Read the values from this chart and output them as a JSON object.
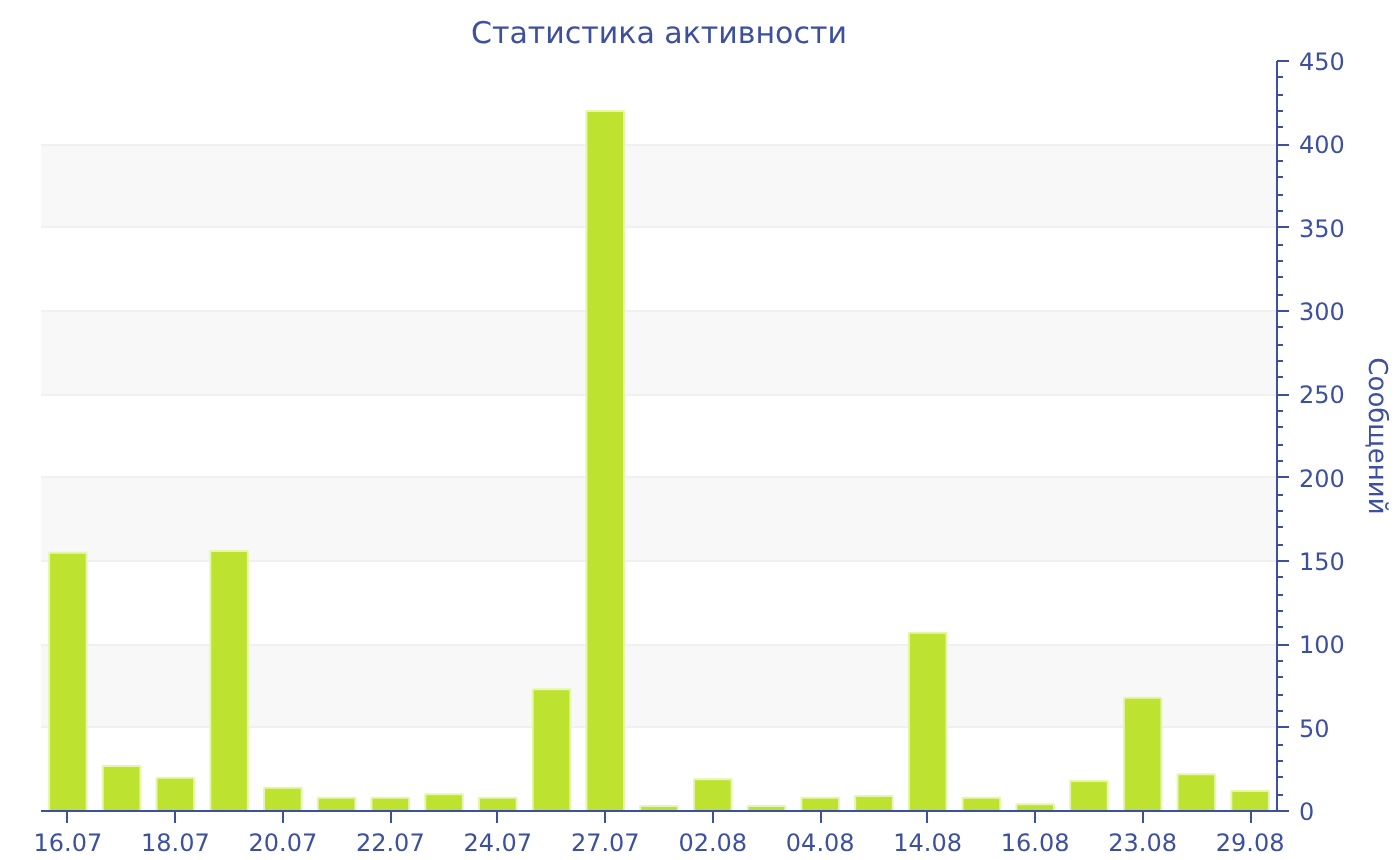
{
  "chart_data": {
    "type": "bar",
    "title": "Статистика активности",
    "y2label": "Сообщений",
    "categories": [
      "16.07",
      null,
      "18.07",
      null,
      "20.07",
      null,
      "22.07",
      null,
      "24.07",
      null,
      "27.07",
      null,
      "02.08",
      null,
      "04.08",
      null,
      "14.08",
      null,
      "16.08",
      null,
      "23.08",
      null,
      "29.08"
    ],
    "series": [
      {
        "color": "#bde22f",
        "axis": "y2",
        "values": [
          155,
          27,
          20,
          156,
          14,
          8,
          8,
          10,
          8,
          73,
          420,
          3,
          19,
          3,
          8,
          9,
          107,
          8,
          4,
          18,
          68,
          22,
          12
        ]
      }
    ],
    "y2lim": [
      0,
      450
    ],
    "y2ticks": [
      0,
      50,
      100,
      150,
      200,
      250,
      300,
      350,
      400,
      450
    ],
    "grid": "y"
  }
}
